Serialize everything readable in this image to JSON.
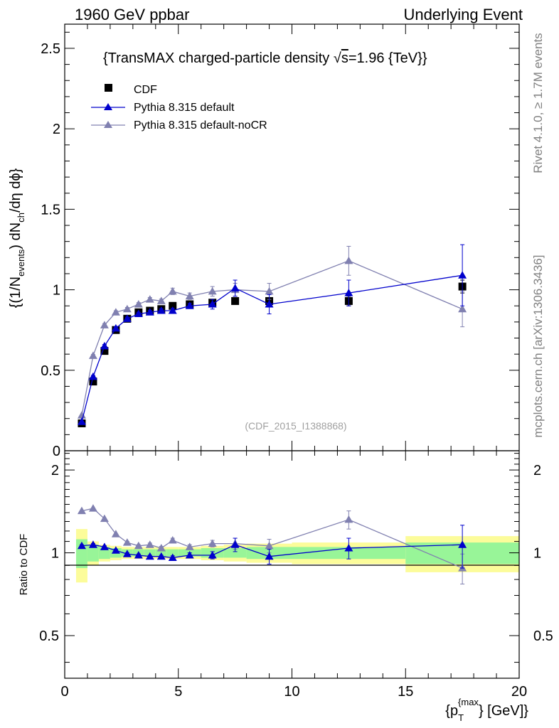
{
  "header": {
    "left": "1960 GeV ppbar",
    "right": "Underlying Event"
  },
  "side_labels": {
    "rivet": "Rivet 4.1.0, ≥ 1.7M events",
    "mcplots": "mcplots.cern.ch [arXiv:1306.3436]"
  },
  "colors": {
    "data": "#000000",
    "default": "#0000cc",
    "nocr": "#8080b0",
    "band_inner": "#98f598",
    "band_outer": "#fcfc9a"
  },
  "chart_data": [
    {
      "type": "line",
      "title_prefix": "{TransMAX charged-particle density ",
      "title_sqrt": "√",
      "title_s": "s",
      "title_suffix": "=1.96 {TeV}}",
      "watermark": "(CDF_2015_I1388868)",
      "ylabel": {
        "p1": "{(1/N",
        "s1": "events",
        "p2": ") dN",
        "s2": "ch",
        "p3": "/dη dϕ}"
      },
      "xlim": [
        0,
        20
      ],
      "ylim": [
        0,
        2.65
      ],
      "yticks": [
        {
          "v": 0,
          "label": "0"
        },
        {
          "v": 0.5,
          "label": "0.5"
        },
        {
          "v": 1,
          "label": "1"
        },
        {
          "v": 1.5,
          "label": "1.5"
        },
        {
          "v": 2,
          "label": "2"
        },
        {
          "v": 2.5,
          "label": "2.5"
        }
      ],
      "legend": [
        {
          "label": "CDF",
          "marker": "square",
          "series": "data"
        },
        {
          "label": "Pythia 8.315 default",
          "marker": "triangle",
          "series": "default"
        },
        {
          "label": "Pythia 8.315 default-noCR",
          "marker": "triangle",
          "series": "nocr"
        }
      ],
      "series": [
        {
          "name": "CDF",
          "key": "data",
          "marker": "square",
          "x": [
            0.75,
            1.25,
            1.75,
            2.25,
            2.75,
            3.25,
            3.75,
            4.25,
            4.75,
            5.5,
            6.5,
            7.5,
            9,
            12.5,
            17.5
          ],
          "y": [
            0.17,
            0.43,
            0.62,
            0.75,
            0.82,
            0.86,
            0.87,
            0.88,
            0.9,
            0.91,
            0.92,
            0.93,
            0.93,
            0.93,
            1.02
          ],
          "err": [
            0.01,
            0.01,
            0.01,
            0.01,
            0.01,
            0.01,
            0.01,
            0.01,
            0.01,
            0.01,
            0.01,
            0.02,
            0.02,
            0.03,
            0.04
          ]
        },
        {
          "name": "Pythia 8.315 default",
          "key": "default",
          "marker": "triangle",
          "x": [
            0.75,
            1.25,
            1.75,
            2.25,
            2.75,
            3.25,
            3.75,
            4.25,
            4.75,
            5.5,
            6.5,
            7.5,
            9,
            12.5,
            17.5
          ],
          "y": [
            0.18,
            0.46,
            0.65,
            0.76,
            0.82,
            0.85,
            0.86,
            0.87,
            0.87,
            0.9,
            0.91,
            1.01,
            0.91,
            0.98,
            1.09
          ],
          "err": [
            0.005,
            0.008,
            0.01,
            0.01,
            0.01,
            0.01,
            0.012,
            0.012,
            0.015,
            0.015,
            0.03,
            0.05,
            0.06,
            0.08,
            0.19
          ]
        },
        {
          "name": "Pythia 8.315 default-noCR",
          "key": "nocr",
          "marker": "triangle",
          "x": [
            0.75,
            1.25,
            1.75,
            2.25,
            2.75,
            3.25,
            3.75,
            4.25,
            4.75,
            5.5,
            6.5,
            7.5,
            9,
            12.5,
            17.5
          ],
          "y": [
            0.22,
            0.59,
            0.78,
            0.86,
            0.88,
            0.91,
            0.94,
            0.93,
            0.99,
            0.96,
            0.99,
            1.0,
            0.99,
            1.18,
            0.88
          ],
          "err": [
            0.005,
            0.008,
            0.01,
            0.01,
            0.01,
            0.01,
            0.012,
            0.012,
            0.02,
            0.02,
            0.03,
            0.04,
            0.05,
            0.09,
            0.11
          ]
        }
      ]
    },
    {
      "type": "line",
      "ylabel": "Ratio to CDF",
      "xlabel": {
        "p1": "{p",
        "sub": "T",
        "sup": "{max",
        "p2": "} [GeV]}"
      },
      "xlim": [
        0,
        20
      ],
      "ylim": [
        0.35,
        2.35
      ],
      "xticks": [
        {
          "v": 0,
          "label": "0"
        },
        {
          "v": 5,
          "label": "5"
        },
        {
          "v": 10,
          "label": "10"
        },
        {
          "v": 15,
          "label": "15"
        },
        {
          "v": 20,
          "label": "20"
        }
      ],
      "yticks": [
        {
          "v": 0.5,
          "label": "0.5"
        },
        {
          "v": 1,
          "label": "1"
        },
        {
          "v": 2,
          "label": "2"
        }
      ],
      "bands": {
        "edges": [
          0.5,
          1,
          1.5,
          2,
          2.5,
          3,
          3.5,
          4,
          4.5,
          5,
          6,
          7,
          8,
          10,
          15,
          20
        ],
        "inner": [
          0.12,
          0.07,
          0.05,
          0.04,
          0.03,
          0.03,
          0.03,
          0.03,
          0.03,
          0.03,
          0.04,
          0.04,
          0.05,
          0.05,
          0.09
        ],
        "outer": [
          0.22,
          0.1,
          0.07,
          0.06,
          0.05,
          0.05,
          0.05,
          0.05,
          0.05,
          0.05,
          0.06,
          0.07,
          0.08,
          0.09,
          0.15
        ]
      },
      "series": [
        {
          "name": "Pythia 8.315 default",
          "key": "default",
          "marker": "triangle",
          "x": [
            0.75,
            1.25,
            1.75,
            2.25,
            2.75,
            3.25,
            3.75,
            4.25,
            4.75,
            5.5,
            6.5,
            7.5,
            9,
            12.5,
            17.5
          ],
          "y": [
            1.06,
            1.07,
            1.05,
            1.02,
            0.99,
            0.98,
            0.97,
            0.97,
            0.96,
            0.98,
            0.98,
            1.07,
            0.97,
            1.04,
            1.07
          ],
          "err": [
            0.01,
            0.01,
            0.01,
            0.01,
            0.01,
            0.01,
            0.01,
            0.01,
            0.015,
            0.02,
            0.03,
            0.06,
            0.06,
            0.09,
            0.19
          ]
        },
        {
          "name": "Pythia 8.315 default-noCR",
          "key": "nocr",
          "marker": "triangle",
          "x": [
            0.75,
            1.25,
            1.75,
            2.25,
            2.75,
            3.25,
            3.75,
            4.25,
            4.75,
            5.5,
            6.5,
            7.5,
            9,
            12.5,
            17.5
          ],
          "y": [
            1.42,
            1.45,
            1.33,
            1.17,
            1.09,
            1.06,
            1.07,
            1.04,
            1.11,
            1.05,
            1.08,
            1.08,
            1.06,
            1.32,
            0.88
          ],
          "err": [
            0.01,
            0.01,
            0.01,
            0.01,
            0.01,
            0.01,
            0.015,
            0.015,
            0.02,
            0.02,
            0.03,
            0.05,
            0.06,
            0.1,
            0.11
          ]
        }
      ]
    }
  ]
}
